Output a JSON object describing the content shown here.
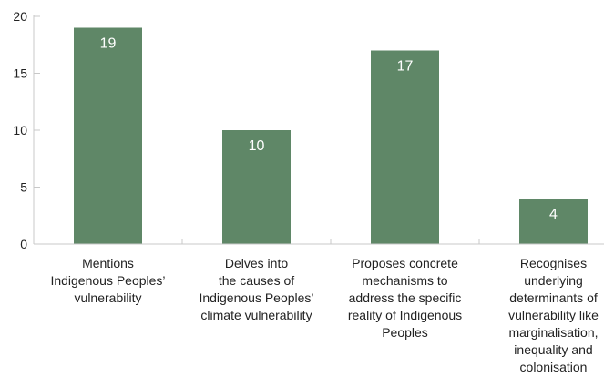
{
  "chart_data": {
    "type": "bar",
    "categories": [
      [
        "Mentions",
        "Indigenous Peoples’",
        "vulnerability"
      ],
      [
        "Delves into",
        "the causes of",
        "Indigenous Peoples’",
        "climate vulnerability"
      ],
      [
        "Proposes concrete",
        "mechanisms to",
        "address the specific",
        "reality of Indigenous",
        "Peoples"
      ],
      [
        "Recognises",
        "underlying",
        "determinants of",
        "vulnerability like",
        "marginalisation,",
        "inequality and",
        "colonisation"
      ]
    ],
    "values": [
      19,
      10,
      17,
      4
    ],
    "value_labels": [
      "19",
      "10",
      "17",
      "4"
    ],
    "y_ticks": [
      "0",
      "5",
      "10",
      "15",
      "20"
    ],
    "ylim": [
      0,
      20
    ],
    "grid": false,
    "bar_color": "#5f8767",
    "axis_color": "#c8c8c8"
  }
}
